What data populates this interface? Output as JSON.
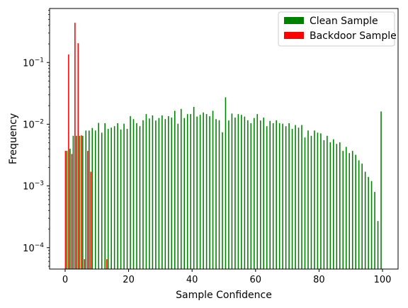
{
  "chart_data": {
    "type": "bar",
    "xlabel": "Sample Confidence",
    "ylabel": "Frequency",
    "yscale": "log",
    "xlim": [
      -4.9,
      104.9
    ],
    "ylim": [
      4.5e-05,
      0.75
    ],
    "x_ticks": [
      0,
      20,
      40,
      60,
      80,
      100
    ],
    "y_ticks": [
      {
        "value": 0.0001,
        "base": "10",
        "exp": "−4"
      },
      {
        "value": 0.001,
        "base": "10",
        "exp": "−3"
      },
      {
        "value": 0.01,
        "base": "10",
        "exp": "−2"
      },
      {
        "value": 0.1,
        "base": "10",
        "exp": "−1"
      }
    ],
    "legend": {
      "placement": "upper right"
    },
    "series": [
      {
        "name": "Clean Sample",
        "color": "#008000",
        "x": [
          0.5,
          1.5,
          2.5,
          3.5,
          4.5,
          5.5,
          6.5,
          7.5,
          8.5,
          9.5,
          10.5,
          11.5,
          12.5,
          13.5,
          14.5,
          15.5,
          16.5,
          17.5,
          18.5,
          19.5,
          20.5,
          21.5,
          22.5,
          23.5,
          24.5,
          25.5,
          26.5,
          27.5,
          28.5,
          29.5,
          30.5,
          31.5,
          32.5,
          33.5,
          34.5,
          35.5,
          36.5,
          37.5,
          38.5,
          39.5,
          40.5,
          41.5,
          42.5,
          43.5,
          44.5,
          45.5,
          46.5,
          47.5,
          48.5,
          49.5,
          50.5,
          51.5,
          52.5,
          53.5,
          54.5,
          55.5,
          56.5,
          57.5,
          58.5,
          59.5,
          60.5,
          61.5,
          62.5,
          63.5,
          64.5,
          65.5,
          66.5,
          67.5,
          68.5,
          69.5,
          70.5,
          71.5,
          72.5,
          73.5,
          74.5,
          75.5,
          76.5,
          77.5,
          78.5,
          79.5,
          80.5,
          81.5,
          82.5,
          83.5,
          84.5,
          85.5,
          86.5,
          87.5,
          88.5,
          89.5,
          90.5,
          91.5,
          92.5,
          93.5,
          94.5,
          95.5,
          96.5,
          97.5,
          98.5,
          99.5
        ],
        "values": [
          0.0037,
          0.004,
          0.0065,
          0.0065,
          0.0065,
          0.0065,
          0.0079,
          0.0079,
          0.0087,
          0.0079,
          0.0105,
          0.0073,
          0.0104,
          0.0084,
          0.0088,
          0.0093,
          0.0104,
          0.0082,
          0.0102,
          0.0084,
          0.0135,
          0.0121,
          0.0104,
          0.0093,
          0.0116,
          0.0146,
          0.0124,
          0.0139,
          0.0115,
          0.0126,
          0.0139,
          0.0121,
          0.0135,
          0.0128,
          0.0165,
          0.0102,
          0.0177,
          0.0126,
          0.0146,
          0.0146,
          0.0191,
          0.0133,
          0.0142,
          0.0155,
          0.0146,
          0.0135,
          0.0165,
          0.0121,
          0.0116,
          0.0074,
          0.0273,
          0.0115,
          0.0149,
          0.0128,
          0.0146,
          0.0142,
          0.0133,
          0.0116,
          0.0104,
          0.0126,
          0.0146,
          0.0115,
          0.0128,
          0.0093,
          0.0113,
          0.0104,
          0.0116,
          0.0104,
          0.0102,
          0.0093,
          0.0104,
          0.0084,
          0.0097,
          0.0088,
          0.0097,
          0.0061,
          0.0079,
          0.0065,
          0.0079,
          0.0073,
          0.0071,
          0.0055,
          0.0065,
          0.0051,
          0.0057,
          0.0048,
          0.0051,
          0.0037,
          0.0043,
          0.0034,
          0.0037,
          0.0032,
          0.0026,
          0.0023,
          0.0017,
          0.0014,
          0.0012,
          0.0008,
          0.00027,
          0.0161
        ]
      },
      {
        "name": "Backdoor Sample",
        "color": "#ff0000",
        "x": [
          0.5,
          1.5,
          2.5,
          3.5,
          4.5,
          5.5,
          6.5,
          7.5,
          8.5,
          13.5
        ],
        "values": [
          0.0037,
          0.135,
          0.0033,
          0.44,
          0.205,
          0.0066,
          6.5e-05,
          0.0037,
          0.0017,
          6.5e-05
        ]
      }
    ]
  }
}
